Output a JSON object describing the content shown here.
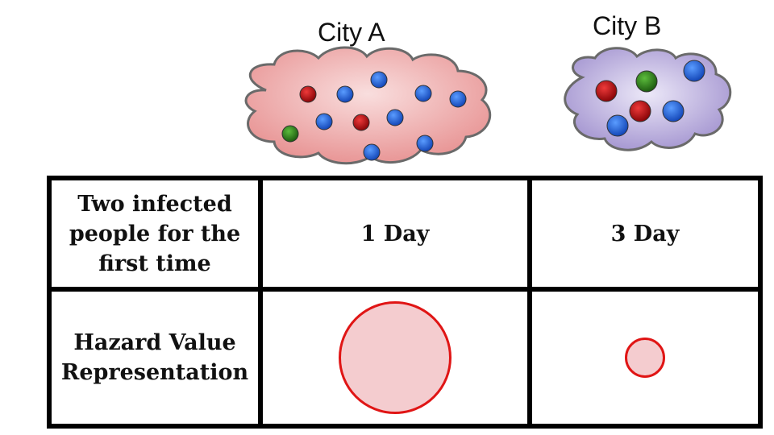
{
  "cities": {
    "a": {
      "label": "City A"
    },
    "b": {
      "label": "City B"
    }
  },
  "table": {
    "row1_header": "Two infected people for the first time",
    "row1_city_a": "1 Day",
    "row1_city_b": "3 Day",
    "row2_header": "Hazard Value Representation"
  },
  "colors": {
    "cloud_a": "#eea8a8",
    "cloud_b": "#b6a9dc",
    "dot_blue": "#1f5fd0",
    "dot_red": "#b80f14",
    "dot_green": "#2f7a1e",
    "hazard_fill": "#f4cccf",
    "hazard_stroke": "#e01515"
  }
}
